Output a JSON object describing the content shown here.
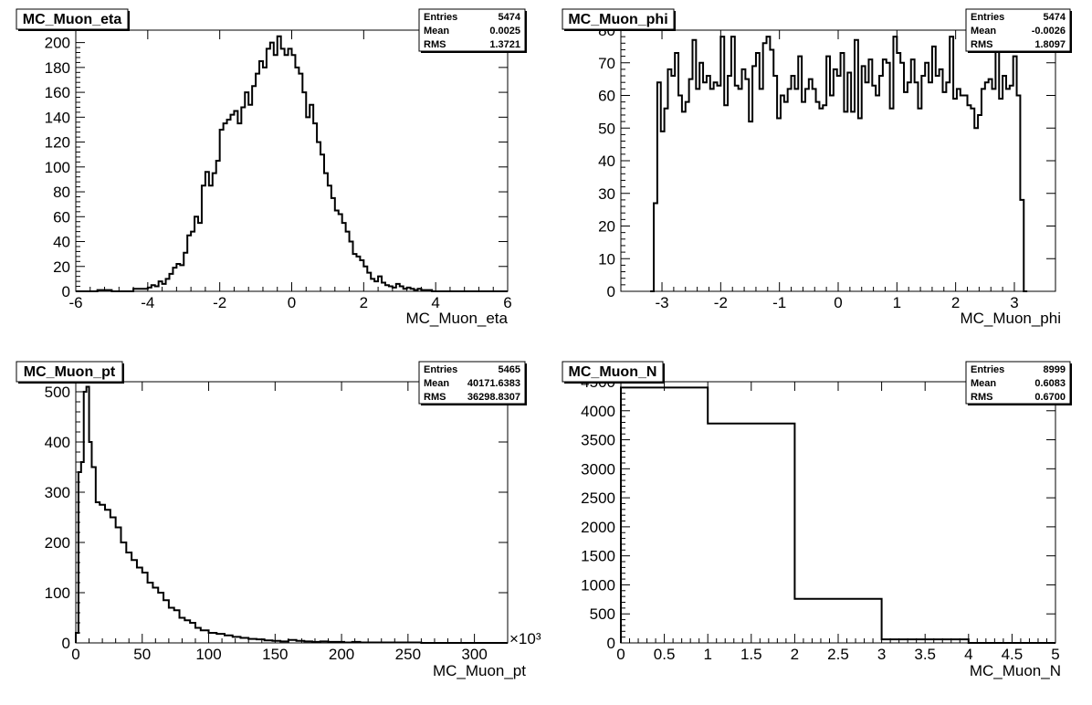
{
  "chart_data": [
    {
      "type": "histogram",
      "title": "MC_Muon_eta",
      "xlabel": "MC_Muon_eta",
      "xlim": [
        -6,
        6
      ],
      "ylim": [
        0,
        210
      ],
      "x_ticks": [
        -6,
        -4,
        -2,
        0,
        2,
        4,
        6
      ],
      "y_ticks": [
        0,
        20,
        40,
        60,
        80,
        100,
        120,
        140,
        160,
        180,
        200
      ],
      "x_multiplier": "",
      "stats": {
        "entries_label": "Entries",
        "entries": "5474",
        "mean_label": "Mean",
        "mean": "0.0025",
        "rms_label": "RMS",
        "rms": "1.3721"
      },
      "bins": {
        "edges": [
          -6.0,
          -5.4,
          -5.0,
          -4.4,
          -4.0,
          -3.9,
          -3.8,
          -3.7,
          -3.6,
          -3.5,
          -3.4,
          -3.3,
          -3.2,
          -3.1,
          -3.0,
          -2.9,
          -2.8,
          -2.7,
          -2.6,
          -2.5,
          -2.4,
          -2.3,
          -2.2,
          -2.1,
          -2.0,
          -1.9,
          -1.8,
          -1.7,
          -1.6,
          -1.5,
          -1.4,
          -1.3,
          -1.2,
          -1.1,
          -1.0,
          -0.9,
          -0.8,
          -0.7,
          -0.6,
          -0.5,
          -0.4,
          -0.3,
          -0.2,
          -0.1,
          0.0,
          0.1,
          0.2,
          0.3,
          0.4,
          0.5,
          0.6,
          0.7,
          0.8,
          0.9,
          1.0,
          1.1,
          1.2,
          1.3,
          1.4,
          1.5,
          1.6,
          1.7,
          1.8,
          1.9,
          2.0,
          2.1,
          2.2,
          2.3,
          2.4,
          2.5,
          2.6,
          2.7,
          2.8,
          2.9,
          3.0,
          3.1,
          3.2,
          3.3,
          3.4,
          3.5,
          3.6,
          3.7,
          3.8,
          3.9,
          4.0,
          4.1,
          4.2,
          4.4,
          5.0,
          6.0
        ],
        "values": [
          0,
          1,
          0,
          2,
          3,
          5,
          4,
          8,
          6,
          10,
          14,
          19,
          22,
          21,
          31,
          45,
          48,
          60,
          55,
          85,
          96,
          85,
          95,
          105,
          130,
          135,
          138,
          142,
          145,
          135,
          148,
          160,
          150,
          165,
          175,
          185,
          180,
          195,
          200,
          190,
          205,
          195,
          190,
          195,
          190,
          180,
          175,
          160,
          140,
          150,
          135,
          120,
          110,
          95,
          85,
          75,
          65,
          62,
          55,
          48,
          40,
          30,
          28,
          25,
          20,
          15,
          10,
          8,
          12,
          7,
          5,
          4,
          3,
          6,
          4,
          2,
          3,
          2,
          1,
          2,
          1,
          1,
          1,
          0,
          0,
          0,
          0,
          0,
          0
        ]
      }
    },
    {
      "type": "histogram",
      "title": "MC_Muon_phi",
      "xlabel": "MC_Muon_phi",
      "xlim": [
        -3.7,
        3.7
      ],
      "ylim": [
        0,
        80
      ],
      "x_ticks": [
        -3,
        -2,
        -1,
        0,
        1,
        2,
        3
      ],
      "y_ticks": [
        0,
        10,
        20,
        30,
        40,
        50,
        60,
        70,
        80
      ],
      "x_multiplier": "",
      "stats": {
        "entries_label": "Entries",
        "entries": "5474",
        "mean_label": "Mean",
        "mean": "-0.0026",
        "rms_label": "RMS",
        "rms": "1.8097"
      },
      "bins": {
        "edges": [
          -3.2,
          -3.14,
          -3.08,
          -3.02,
          -2.96,
          -2.9,
          -2.84,
          -2.78,
          -2.72,
          -2.66,
          -2.6,
          -2.54,
          -2.48,
          -2.42,
          -2.36,
          -2.3,
          -2.24,
          -2.18,
          -2.12,
          -2.06,
          -2.0,
          -1.94,
          -1.88,
          -1.82,
          -1.76,
          -1.7,
          -1.64,
          -1.58,
          -1.52,
          -1.46,
          -1.4,
          -1.34,
          -1.28,
          -1.22,
          -1.16,
          -1.1,
          -1.04,
          -0.98,
          -0.92,
          -0.86,
          -0.8,
          -0.74,
          -0.68,
          -0.62,
          -0.56,
          -0.5,
          -0.44,
          -0.38,
          -0.32,
          -0.26,
          -0.2,
          -0.14,
          -0.08,
          -0.02,
          0.04,
          0.1,
          0.16,
          0.22,
          0.28,
          0.34,
          0.4,
          0.46,
          0.52,
          0.58,
          0.64,
          0.7,
          0.76,
          0.82,
          0.88,
          0.94,
          1.0,
          1.06,
          1.12,
          1.18,
          1.24,
          1.3,
          1.36,
          1.42,
          1.48,
          1.54,
          1.6,
          1.66,
          1.72,
          1.78,
          1.84,
          1.9,
          1.96,
          2.02,
          2.08,
          2.14,
          2.2,
          2.26,
          2.32,
          2.38,
          2.44,
          2.5,
          2.56,
          2.62,
          2.68,
          2.74,
          2.8,
          2.86,
          2.92,
          2.98,
          3.04,
          3.1,
          3.16,
          3.22
        ],
        "values": [
          0,
          27,
          64,
          49,
          56,
          68,
          66,
          73,
          60,
          55,
          58,
          65,
          77,
          62,
          70,
          64,
          66,
          62,
          64,
          63,
          78,
          57,
          66,
          78,
          63,
          62,
          68,
          65,
          52,
          69,
          73,
          62,
          76,
          78,
          74,
          66,
          53,
          60,
          58,
          62,
          66,
          62,
          72,
          58,
          62,
          65,
          62,
          58,
          56,
          57,
          72,
          60,
          68,
          66,
          73,
          55,
          67,
          55,
          77,
          53,
          69,
          64,
          71,
          63,
          60,
          66,
          71,
          70,
          56,
          78,
          73,
          70,
          61,
          64,
          71,
          64,
          56,
          66,
          70,
          64,
          75,
          66,
          68,
          61,
          64,
          78,
          59,
          62,
          60,
          60,
          57,
          56,
          50,
          54,
          62,
          64,
          65,
          62,
          77,
          59,
          66,
          62,
          63,
          72,
          60,
          28,
          0
        ]
      }
    },
    {
      "type": "histogram",
      "title": "MC_Muon_pt",
      "xlabel": "MC_Muon_pt",
      "xlim": [
        0,
        325
      ],
      "ylim": [
        0,
        520
      ],
      "x_ticks": [
        0,
        50,
        100,
        150,
        200,
        250,
        300
      ],
      "y_ticks": [
        0,
        100,
        200,
        300,
        400,
        500
      ],
      "x_multiplier": "×10³",
      "stats": {
        "entries_label": "Entries",
        "entries": "5465",
        "mean_label": "Mean",
        "mean": "40171.6383",
        "rms_label": "RMS",
        "rms": "36298.8307"
      },
      "bins": {
        "edges": [
          0,
          2,
          4,
          6,
          8,
          10,
          12,
          15,
          18,
          22,
          26,
          30,
          34,
          38,
          42,
          46,
          50,
          54,
          58,
          62,
          66,
          70,
          74,
          78,
          82,
          86,
          90,
          94,
          100,
          106,
          112,
          118,
          124,
          130,
          136,
          142,
          148,
          154,
          160,
          166,
          172,
          178,
          184,
          190,
          196,
          202,
          208,
          214,
          220,
          230,
          240,
          260,
          280,
          300,
          325
        ],
        "values": [
          20,
          340,
          360,
          500,
          510,
          400,
          350,
          280,
          275,
          265,
          250,
          230,
          200,
          180,
          165,
          150,
          140,
          120,
          110,
          100,
          85,
          70,
          65,
          50,
          45,
          40,
          30,
          25,
          20,
          18,
          15,
          12,
          10,
          8,
          7,
          5,
          4,
          3,
          6,
          4,
          3,
          2,
          3,
          2,
          2,
          1,
          2,
          1,
          1,
          1,
          1,
          0,
          0,
          0
        ]
      }
    },
    {
      "type": "histogram",
      "title": "MC_Muon_N",
      "xlabel": "MC_Muon_N",
      "xlim": [
        0,
        5
      ],
      "ylim": [
        0,
        4500
      ],
      "x_ticks": [
        0,
        0.5,
        1,
        1.5,
        2,
        2.5,
        3,
        3.5,
        4,
        4.5,
        5
      ],
      "y_ticks": [
        0,
        500,
        1000,
        1500,
        2000,
        2500,
        3000,
        3500,
        4000,
        4500
      ],
      "x_multiplier": "",
      "stats": {
        "entries_label": "Entries",
        "entries": "8999",
        "mean_label": "Mean",
        "mean": "0.6083",
        "rms_label": "RMS",
        "rms": "0.6700"
      },
      "bins": {
        "edges": [
          0,
          1,
          2,
          3,
          4,
          5
        ],
        "values": [
          4400,
          3780,
          760,
          60,
          0
        ]
      }
    }
  ]
}
